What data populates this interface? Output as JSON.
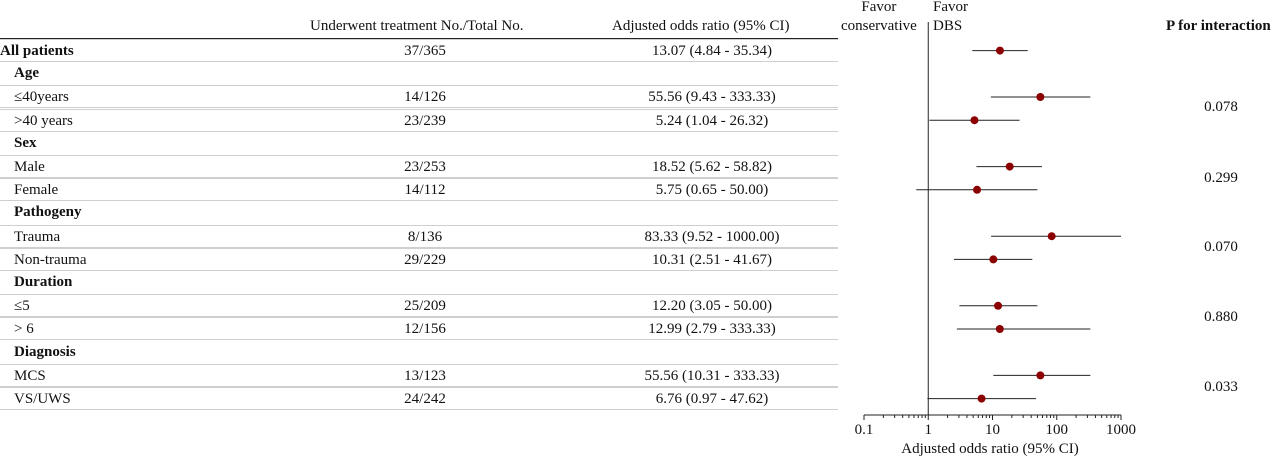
{
  "header": {
    "col_count": "Underwent treatment No./Total No.",
    "col_or": "Adjusted odds ratio (95% CI)",
    "favor_left": [
      "Favor",
      "conservative"
    ],
    "favor_right": [
      "Favor",
      "DBS"
    ],
    "col_p": "P for interaction"
  },
  "rows": [
    {
      "label": "All patients",
      "level": 1,
      "count": "37/365",
      "or_text": "13.07 (4.84 - 35.34)"
    },
    {
      "label": "Age",
      "level": 2,
      "count": "",
      "or_text": ""
    },
    {
      "label": "≤40years",
      "level": 3,
      "count": "14/126",
      "or_text": "55.56 (9.43 - 333.33)"
    },
    {
      "label": ">40 years",
      "level": 3,
      "count": "23/239",
      "or_text": "5.24 (1.04 - 26.32)"
    },
    {
      "label": "Sex",
      "level": 2,
      "count": "",
      "or_text": ""
    },
    {
      "label": "Male",
      "level": 3,
      "count": "23/253",
      "or_text": "18.52 (5.62 - 58.82)"
    },
    {
      "label": "Female",
      "level": 3,
      "count": "14/112",
      "or_text": "5.75 (0.65 - 50.00)"
    },
    {
      "label": "Pathogeny",
      "level": 2,
      "count": "",
      "or_text": ""
    },
    {
      "label": "Trauma",
      "level": 3,
      "count": "8/136",
      "or_text": "83.33 (9.52 - 1000.00)"
    },
    {
      "label": "Non-trauma",
      "level": 3,
      "count": "29/229",
      "or_text": "10.31 (2.51 - 41.67)"
    },
    {
      "label": "Duration",
      "level": 2,
      "count": "",
      "or_text": ""
    },
    {
      "label": "≤5",
      "level": 3,
      "count": "25/209",
      "or_text": "12.20 (3.05 - 50.00)"
    },
    {
      "label": "> 6",
      "level": 3,
      "count": "12/156",
      "or_text": "12.99 (2.79 - 333.33)"
    },
    {
      "label": "Diagnosis",
      "level": 2,
      "count": "",
      "or_text": ""
    },
    {
      "label": "MCS",
      "level": 3,
      "count": "13/123",
      "or_text": "55.56 (10.31 - 333.33)"
    },
    {
      "label": "VS/UWS",
      "level": 3,
      "count": "24/242",
      "or_text": "6.76 (0.97 - 47.62)"
    }
  ],
  "p_values": [
    "0.078",
    "0.299",
    "0.070",
    "0.880",
    "0.033"
  ],
  "chart_data": {
    "type": "forest",
    "xlabel": "Adjusted odds ratio (95% CI)",
    "x_scale": "log",
    "xlim": [
      0.1,
      1000
    ],
    "xticks": [
      0.1,
      1,
      10,
      100,
      1000
    ],
    "xtick_labels": [
      "0.1",
      "1",
      "10",
      "100",
      "1000"
    ],
    "reference_line": 1,
    "point_color": "#8b0000",
    "points": [
      {
        "row": 0,
        "or": 13.07,
        "lo": 4.84,
        "hi": 35.34
      },
      {
        "row": 2,
        "or": 55.56,
        "lo": 9.43,
        "hi": 333.33
      },
      {
        "row": 3,
        "or": 5.24,
        "lo": 1.04,
        "hi": 26.32
      },
      {
        "row": 5,
        "or": 18.52,
        "lo": 5.62,
        "hi": 58.82
      },
      {
        "row": 6,
        "or": 5.75,
        "lo": 0.65,
        "hi": 50.0
      },
      {
        "row": 8,
        "or": 83.33,
        "lo": 9.52,
        "hi": 1000.0
      },
      {
        "row": 9,
        "or": 10.31,
        "lo": 2.51,
        "hi": 41.67
      },
      {
        "row": 11,
        "or": 12.2,
        "lo": 3.05,
        "hi": 50.0
      },
      {
        "row": 12,
        "or": 12.99,
        "lo": 2.79,
        "hi": 333.33
      },
      {
        "row": 14,
        "or": 55.56,
        "lo": 10.31,
        "hi": 333.33
      },
      {
        "row": 15,
        "or": 6.76,
        "lo": 0.97,
        "hi": 47.62
      }
    ]
  }
}
